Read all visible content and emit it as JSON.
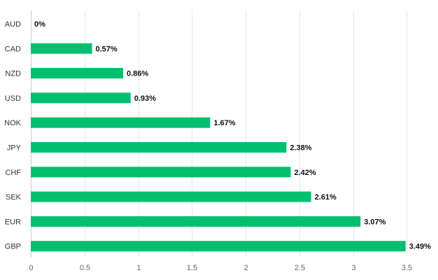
{
  "chart_data": {
    "type": "bar",
    "orientation": "horizontal",
    "categories": [
      "AUD",
      "CAD",
      "NZD",
      "USD",
      "NOK",
      "JPY",
      "CHF",
      "SEK",
      "EUR",
      "GBP"
    ],
    "values": [
      0,
      0.57,
      0.86,
      0.93,
      1.67,
      2.38,
      2.42,
      2.61,
      3.07,
      3.49
    ],
    "data_labels": [
      "0%",
      "0.57%",
      "0.86%",
      "0.93%",
      "1.67%",
      "2.38%",
      "2.42%",
      "2.61%",
      "3.07%",
      "3.49%"
    ],
    "x_ticks": [
      "0",
      "0.5",
      "1",
      "1.5",
      "2",
      "2.5",
      "3",
      "3.5"
    ],
    "xlim": [
      0,
      3.5
    ],
    "title": "",
    "xlabel": "",
    "ylabel": "",
    "grid": true,
    "legend": false,
    "bar_color": "#00bf6f"
  }
}
